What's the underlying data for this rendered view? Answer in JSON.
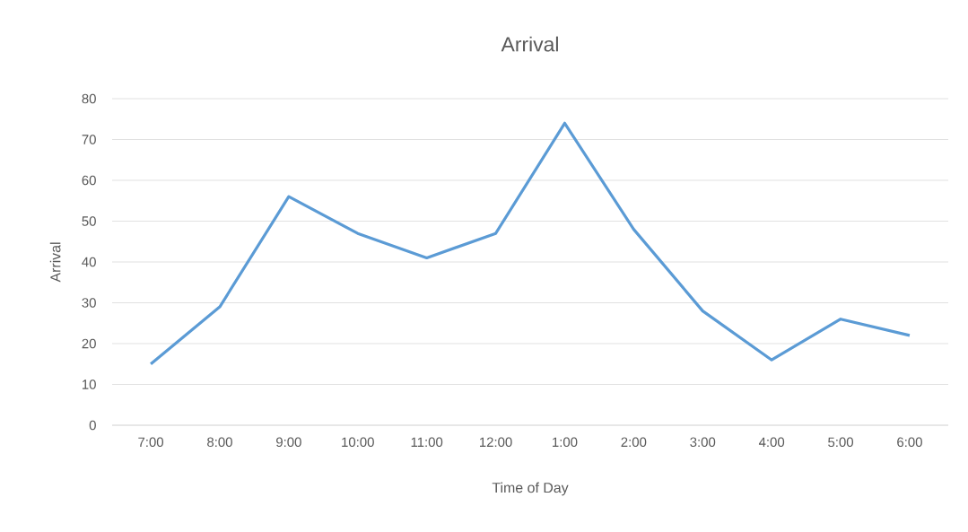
{
  "chart_data": {
    "type": "line",
    "title": "Arrival",
    "xlabel": "Time of Day",
    "ylabel": "Arrival",
    "categories": [
      "7:00",
      "8:00",
      "9:00",
      "10:00",
      "11:00",
      "12:00",
      "1:00",
      "2:00",
      "3:00",
      "4:00",
      "5:00",
      "6:00"
    ],
    "series": [
      {
        "color": "#5b9bd5",
        "values": [
          15,
          29,
          56,
          47,
          41,
          47,
          74,
          48,
          28,
          16,
          26,
          22
        ]
      }
    ],
    "ylim": [
      0,
      80
    ],
    "yticks": [
      0,
      10,
      20,
      30,
      40,
      50,
      60,
      70,
      80
    ],
    "grid": "y",
    "marker": "none",
    "line_style": "solid"
  }
}
